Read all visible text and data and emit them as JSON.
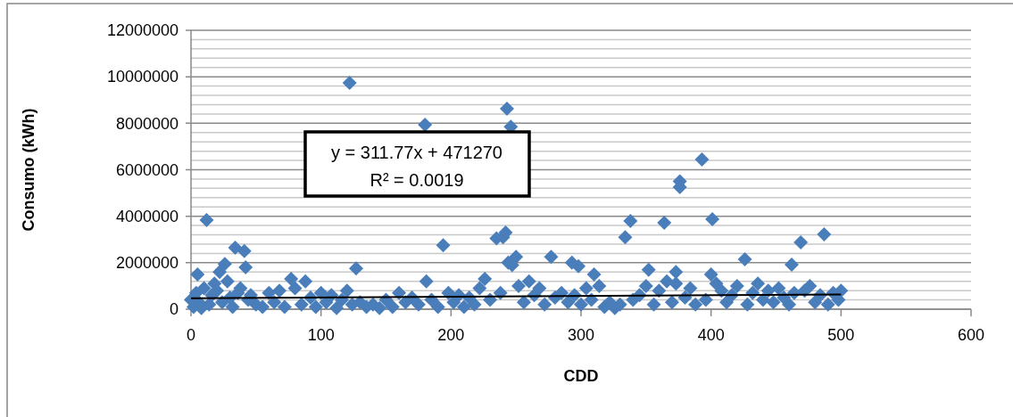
{
  "chart_data": {
    "type": "scatter",
    "xlabel": "CDD",
    "ylabel": "Consumo (kWh)",
    "xlim": [
      0,
      600
    ],
    "xticks": [
      0,
      100,
      200,
      300,
      400,
      500,
      600
    ],
    "ylim": [
      0,
      12000000
    ],
    "yticks": [
      0,
      2000000,
      4000000,
      6000000,
      8000000,
      10000000,
      12000000
    ],
    "grid": "y",
    "annotations": [
      "y = 311.77x + 471270\nR² = 0.0019"
    ],
    "series": [
      {
        "marker": "diamond",
        "color": "#4a7ebb",
        "x": [
          5,
          12,
          34,
          41,
          42,
          26,
          22,
          77,
          88,
          122,
          127,
          180,
          181,
          194,
          235,
          242,
          240,
          243,
          246,
          247,
          250,
          244,
          277,
          293,
          298,
          310,
          334,
          338,
          364,
          376,
          376,
          393,
          401,
          426,
          462,
          469,
          487,
          373,
          373,
          352,
          400,
          0,
          2,
          4,
          6,
          8,
          10,
          14,
          16,
          18,
          20,
          24,
          28,
          30,
          32,
          36,
          38,
          44,
          46,
          50,
          55,
          60,
          64,
          68,
          72,
          80,
          85,
          92,
          96,
          100,
          104,
          108,
          112,
          116,
          120,
          124,
          130,
          135,
          140,
          145,
          150,
          155,
          160,
          165,
          170,
          175,
          185,
          190,
          198,
          202,
          206,
          210,
          214,
          218,
          222,
          226,
          230,
          238,
          252,
          256,
          260,
          264,
          268,
          272,
          280,
          285,
          290,
          295,
          300,
          304,
          308,
          314,
          318,
          322,
          326,
          330,
          340,
          345,
          350,
          356,
          360,
          366,
          370,
          380,
          384,
          388,
          396,
          404,
          408,
          412,
          416,
          420,
          428,
          432,
          436,
          440,
          444,
          448,
          452,
          456,
          460,
          464,
          472,
          476,
          480,
          484,
          490,
          494,
          498,
          500
        ],
        "values": [
          1500000,
          3830000,
          2650000,
          2500000,
          1800000,
          1950000,
          1600000,
          1300000,
          1200000,
          9740000,
          1750000,
          7940000,
          1200000,
          2750000,
          3050000,
          3300000,
          3100000,
          8630000,
          7850000,
          1900000,
          2250000,
          2000000,
          2250000,
          2000000,
          1850000,
          1500000,
          3100000,
          3800000,
          3720000,
          5500000,
          5250000,
          6440000,
          3870000,
          2150000,
          1920000,
          2880000,
          3220000,
          1600000,
          1100000,
          1700000,
          1500000,
          400000,
          100000,
          700000,
          300000,
          50000,
          900000,
          200000,
          600000,
          1100000,
          800000,
          300000,
          1200000,
          500000,
          100000,
          700000,
          900000,
          400000,
          600000,
          200000,
          100000,
          700000,
          300000,
          800000,
          100000,
          900000,
          200000,
          500000,
          100000,
          700000,
          300000,
          600000,
          50000,
          400000,
          800000,
          200000,
          300000,
          100000,
          200000,
          50000,
          400000,
          100000,
          700000,
          300000,
          500000,
          200000,
          400000,
          100000,
          700000,
          300000,
          600000,
          100000,
          500000,
          200000,
          900000,
          1300000,
          400000,
          700000,
          1000000,
          300000,
          1200000,
          600000,
          900000,
          200000,
          500000,
          700000,
          300000,
          600000,
          200000,
          900000,
          400000,
          1000000,
          100000,
          300000,
          50000,
          200000,
          400000,
          600000,
          1000000,
          200000,
          800000,
          1200000,
          300000,
          500000,
          900000,
          200000,
          400000,
          1100000,
          800000,
          300000,
          600000,
          1000000,
          200000,
          700000,
          1100000,
          400000,
          800000,
          300000,
          900000,
          500000,
          200000,
          700000,
          800000,
          1000000,
          300000,
          600000,
          200000,
          700000,
          400000,
          800000
        ]
      },
      {
        "type": "line",
        "color": "#000000",
        "x": [
          0,
          500
        ],
        "values": [
          470000,
          630000
        ]
      }
    ]
  }
}
